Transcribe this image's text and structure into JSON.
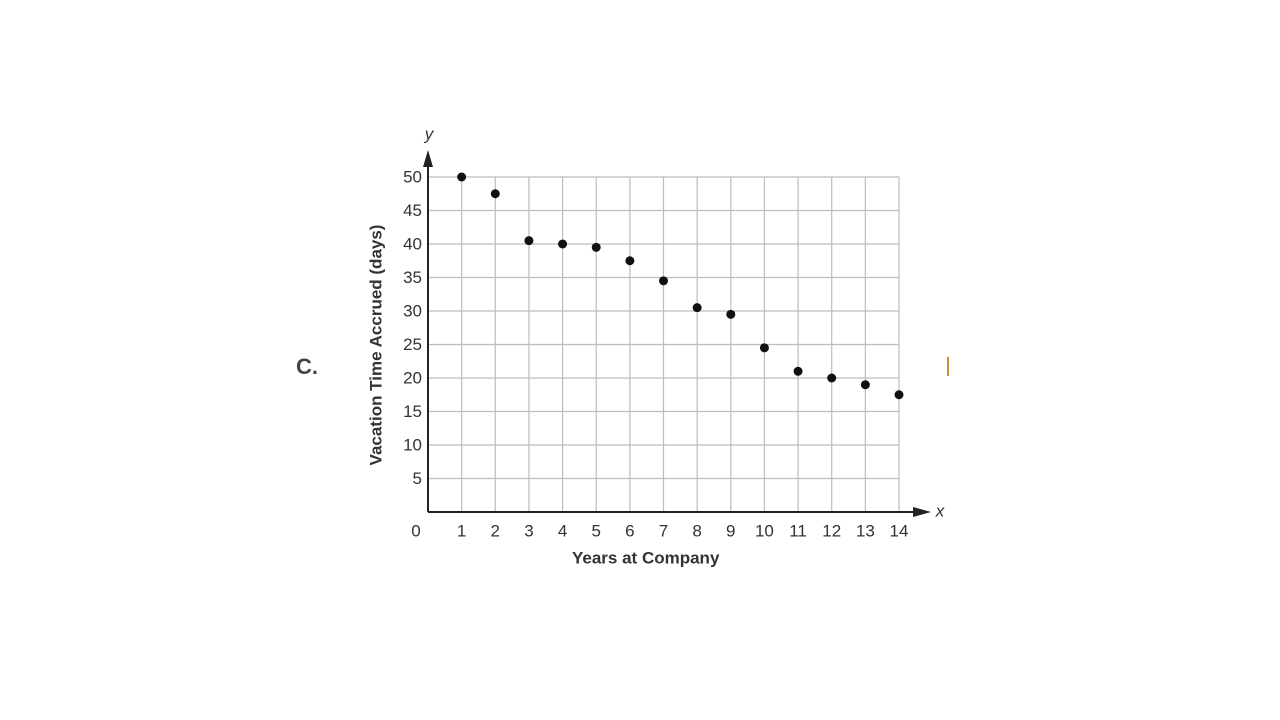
{
  "label": "C.",
  "chart_data": {
    "type": "scatter",
    "x_label": "Years at Company",
    "y_label": "Vacation Time Accrued (days)",
    "x_axis_name": "x",
    "y_axis_name": "y",
    "x": [
      1,
      2,
      3,
      4,
      5,
      6,
      7,
      8,
      9,
      10,
      11,
      12,
      13,
      14
    ],
    "values": [
      50,
      47.5,
      40.5,
      40,
      39.5,
      37.5,
      34.5,
      30.5,
      29.5,
      24.5,
      21,
      20,
      19,
      17.5
    ],
    "color": "#111",
    "xlim": [
      0,
      14
    ],
    "ylim": [
      0,
      50
    ],
    "xticks": [
      0,
      1,
      2,
      3,
      4,
      5,
      6,
      7,
      8,
      9,
      10,
      11,
      12,
      13,
      14
    ],
    "yticks": [
      5,
      10,
      15,
      20,
      25,
      30,
      35,
      40,
      45,
      50
    ],
    "grid": true
  }
}
